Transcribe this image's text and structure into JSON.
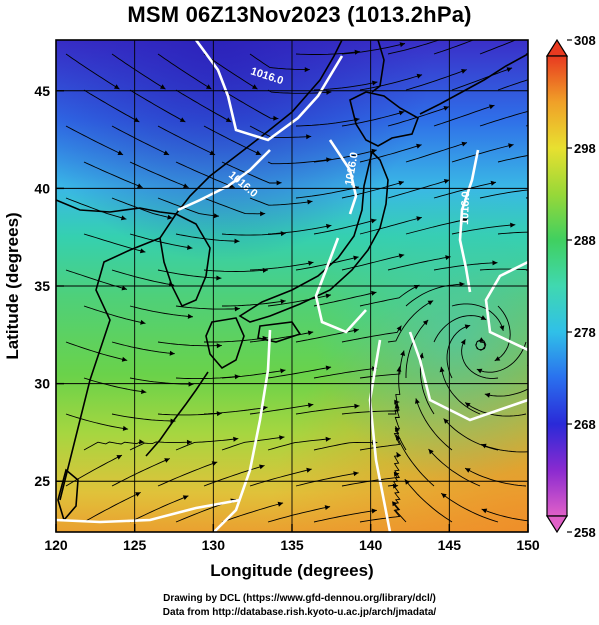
{
  "title": "MSM 06Z13Nov2023 (1013.2hPa)",
  "map": {
    "xlabel": "Longitude (degrees)",
    "ylabel": "Latitude  (degrees)",
    "xlim": [
      120,
      150
    ],
    "ylim": [
      22.4,
      47.6
    ],
    "xticks": [
      120,
      125,
      130,
      135,
      140,
      145,
      150
    ],
    "yticks": [
      25,
      30,
      35,
      40,
      45
    ],
    "xtick_labels": [
      "120",
      "125",
      "130",
      "135",
      "140",
      "145",
      "150"
    ],
    "ytick_labels": [
      "25",
      "30",
      "35",
      "40",
      "45"
    ],
    "contour_labels": [
      "1016.0",
      "1016.0",
      "1016.0",
      "1016.0"
    ]
  },
  "colorbar": {
    "min": 258,
    "max": 308,
    "tick_values": [
      258,
      268,
      278,
      288,
      298,
      308
    ],
    "tick_labels": [
      "258",
      "268",
      "278",
      "288",
      "298",
      "308"
    ]
  },
  "credits": {
    "line1": "Drawing by DCL (https://www.gfd-dennou.org/library/dcl/)",
    "line2": "Data from http://database.rish.kyoto-u.ac.jp/arch/jmadata/"
  }
}
